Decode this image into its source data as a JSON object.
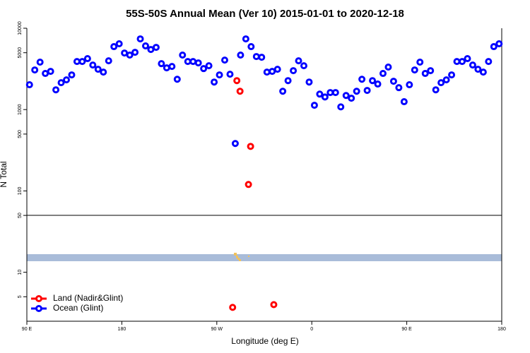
{
  "chart_data": {
    "type": "scatter",
    "title": "55S-50S Annual Mean (Ver 10)   2015-01-01 to 2020-12-18",
    "xlabel": "Longitude (deg E)",
    "ylabel": "N Total",
    "xlim": [
      90,
      540
    ],
    "xticks": [
      {
        "value": 90,
        "label": "90 E"
      },
      180,
      {
        "value": 270,
        "label": "90 W"
      },
      {
        "value": 360,
        "label": "0"
      },
      {
        "value": 450,
        "label": "90 E"
      },
      {
        "value": 540,
        "label": "180"
      }
    ],
    "ylim": [
      2.5,
      10000
    ],
    "log_y": true,
    "yticks": [
      5,
      10,
      50,
      100,
      500,
      1000,
      5000,
      10000
    ],
    "legend": "bottom-left",
    "series": [
      {
        "name": "Land (Nadir&Glint)",
        "color": "#ff0000",
        "x": [
          289,
          292,
          302,
          300,
          285,
          324
        ],
        "values": [
          2270,
          1680,
          353,
          120,
          3.7,
          4.0
        ]
      },
      {
        "name": "Ocean (Glint)",
        "color": "#0000ff",
        "x": [
          92.5,
          97.5,
          102.5,
          107.5,
          112.5,
          117.5,
          122.5,
          127.5,
          132.5,
          137.5,
          142.5,
          147.5,
          152.5,
          157.5,
          162.5,
          167.5,
          172.5,
          177.5,
          182.5,
          187.5,
          192.5,
          197.5,
          202.5,
          207.5,
          212.5,
          217.5,
          222.5,
          227.5,
          232.5,
          237.5,
          242.5,
          247.5,
          252.5,
          257.5,
          262.5,
          267.5,
          272.5,
          277.5,
          282.5,
          287.5,
          292.5,
          297.5,
          302.5,
          307.5,
          312.5,
          317.5,
          322.5,
          327.5,
          332.5,
          337.5,
          342.5,
          347.5,
          352.5,
          357.5,
          362.5,
          367.5,
          372.5,
          377.5,
          382.5,
          387.5,
          392.5,
          397.5,
          402.5,
          407.5,
          412.5,
          417.5,
          422.5,
          427.5,
          432.5,
          437.5,
          442.5,
          447.5,
          452.5,
          457.5,
          462.5,
          467.5,
          472.5,
          477.5,
          482.5,
          487.5,
          492.5,
          497.5,
          502.5,
          507.5,
          512.5,
          517.5,
          522.5,
          527.5,
          532.5,
          537.5
        ],
        "values": [
          2020,
          3070,
          3830,
          2780,
          2950,
          1750,
          2140,
          2320,
          2670,
          3900,
          3900,
          4230,
          3530,
          3130,
          2890,
          3980,
          5940,
          6440,
          4960,
          4680,
          5060,
          7400,
          6070,
          5480,
          5820,
          3670,
          3260,
          3390,
          2360,
          4680,
          3900,
          3900,
          3750,
          3190,
          3460,
          2180,
          2670,
          4060,
          2720,
          383,
          4680,
          7400,
          5940,
          4490,
          4400,
          2890,
          2950,
          3130,
          1680,
          2270,
          3010,
          3980,
          3460,
          2180,
          1130,
          1550,
          1430,
          1620,
          1620,
          1080,
          1490,
          1380,
          1680,
          2360,
          1720,
          2270,
          2060,
          2780,
          3330,
          2230,
          1860,
          1250,
          2020,
          3070,
          3830,
          2780,
          3010,
          1750,
          2140,
          2320,
          2670,
          3900,
          3900,
          4230,
          3530,
          3130,
          2890,
          3900,
          5940,
          6440
        ]
      }
    ]
  }
}
